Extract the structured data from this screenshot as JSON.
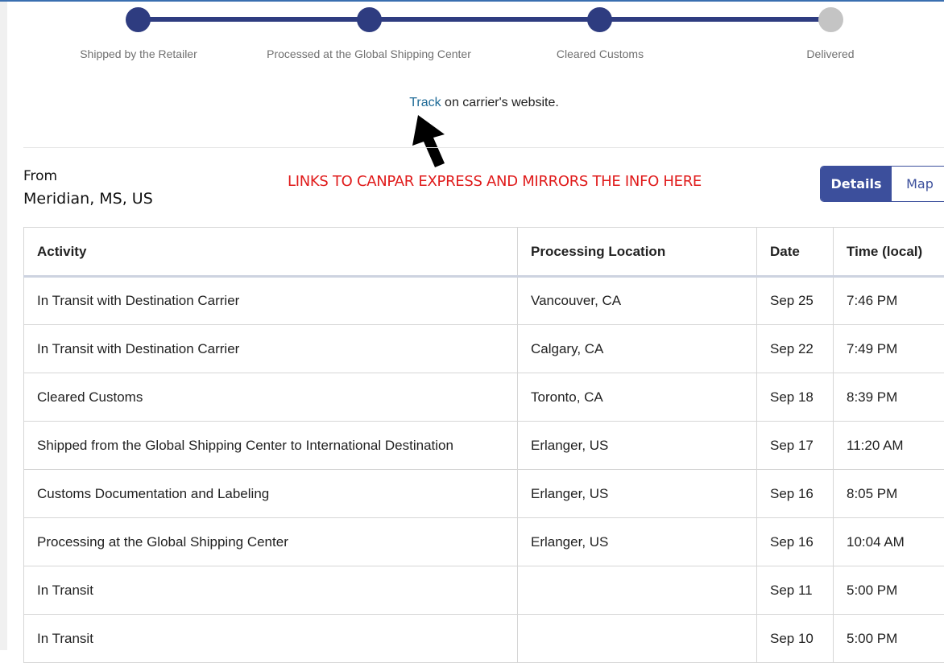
{
  "progress": {
    "steps": [
      {
        "label": "Shipped by the Retailer",
        "done": true
      },
      {
        "label": "Processed at the Global Shipping Center",
        "done": true
      },
      {
        "label": "Cleared Customs",
        "done": true
      },
      {
        "label": "Delivered",
        "done": false
      }
    ],
    "colors": {
      "done": "#2e3c80",
      "pending": "#c4c4c4"
    }
  },
  "track": {
    "link": "Track",
    "rest": " on carrier's website."
  },
  "annotation": "LINKS TO CANPAR EXPRESS AND MIRRORS THE INFO HERE",
  "from": {
    "label": "From",
    "value": "Meridian, MS, US"
  },
  "toggle": {
    "details": "Details",
    "map": "Map",
    "active": "Details"
  },
  "table": {
    "headers": [
      "Activity",
      "Processing Location",
      "Date",
      "Time (local)"
    ],
    "rows": [
      [
        "In Transit with Destination Carrier",
        "Vancouver, CA",
        "Sep 25",
        "7:46 PM"
      ],
      [
        "In Transit with Destination Carrier",
        "Calgary, CA",
        "Sep 22",
        "7:49 PM"
      ],
      [
        "Cleared Customs",
        "Toronto, CA",
        "Sep 18",
        "8:39 PM"
      ],
      [
        "Shipped from the Global Shipping Center to International Destination",
        "Erlanger, US",
        "Sep 17",
        "11:20 AM"
      ],
      [
        "Customs Documentation and Labeling",
        "Erlanger, US",
        "Sep 16",
        "8:05 PM"
      ],
      [
        "Processing at the Global Shipping Center",
        "Erlanger, US",
        "Sep 16",
        "10:04 AM"
      ],
      [
        "In Transit",
        "",
        "Sep 11",
        "5:00 PM"
      ],
      [
        "In Transit",
        "",
        "Sep 10",
        "5:00 PM"
      ]
    ]
  }
}
